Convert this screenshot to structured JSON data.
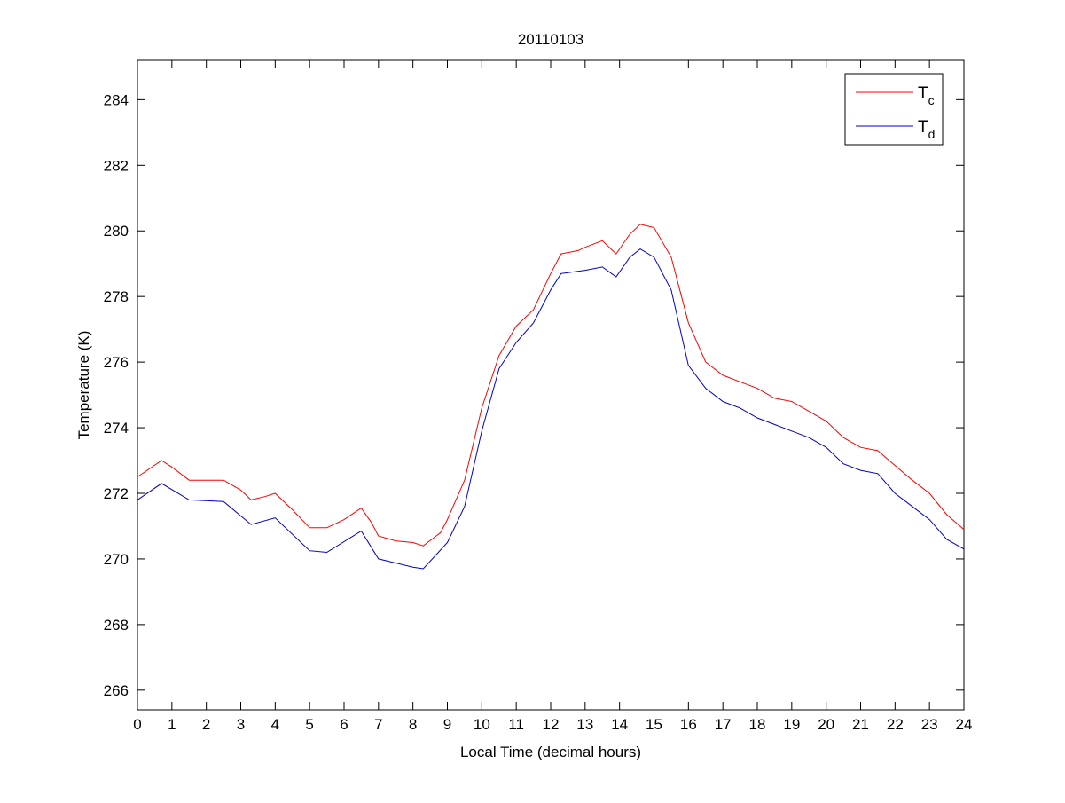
{
  "chart_data": {
    "type": "line",
    "title": "20110103",
    "xlabel": "Local Time (decimal hours)",
    "ylabel": "Temperature (K)",
    "xlim": [
      0,
      24
    ],
    "ylim": [
      265.4,
      285.2
    ],
    "xticks": [
      0,
      1,
      2,
      3,
      4,
      5,
      6,
      7,
      8,
      9,
      10,
      11,
      12,
      13,
      14,
      15,
      16,
      17,
      18,
      19,
      20,
      21,
      22,
      23,
      24
    ],
    "yticks": [
      266,
      268,
      270,
      272,
      274,
      276,
      278,
      280,
      282,
      284
    ],
    "grid": false,
    "legend_position": "top-right",
    "series": [
      {
        "name": "T",
        "subscript": "c",
        "color": "#ff0000",
        "x": [
          0,
          0.7,
          1,
          1.5,
          2,
          2.5,
          3,
          3.3,
          3.7,
          4,
          4.5,
          5,
          5.5,
          6,
          6.5,
          6.8,
          7,
          7.5,
          8,
          8.3,
          8.8,
          9,
          9.5,
          10,
          10.5,
          11,
          11.5,
          12,
          12.3,
          12.8,
          13,
          13.5,
          13.9,
          14.3,
          14.6,
          15,
          15.5,
          16,
          16.5,
          17,
          17.5,
          18,
          18.5,
          19,
          19.5,
          20,
          20.5,
          21,
          21.5,
          22,
          22.5,
          23,
          23.5,
          24
        ],
        "y": [
          272.5,
          273.0,
          272.8,
          272.4,
          272.4,
          272.4,
          272.1,
          271.8,
          271.9,
          272.0,
          271.5,
          270.95,
          270.95,
          271.2,
          271.55,
          271.1,
          270.7,
          270.55,
          270.5,
          270.4,
          270.8,
          271.2,
          272.4,
          274.6,
          276.2,
          277.1,
          277.6,
          278.7,
          279.3,
          279.4,
          279.5,
          279.7,
          279.3,
          279.9,
          280.2,
          280.1,
          279.2,
          277.2,
          276.0,
          275.6,
          275.4,
          275.2,
          274.9,
          274.8,
          274.5,
          274.2,
          273.7,
          273.4,
          273.3,
          272.85,
          272.4,
          272.0,
          271.35,
          270.9
        ]
      },
      {
        "name": "T",
        "subscript": "d",
        "color": "#0000cc",
        "x": [
          0,
          0.7,
          1.5,
          2.5,
          3.3,
          4,
          5,
          5.5,
          6.5,
          7,
          8,
          8.3,
          9,
          9.5,
          10,
          10.5,
          11,
          11.5,
          12,
          12.3,
          13,
          13.5,
          13.9,
          14.3,
          14.6,
          15,
          15.5,
          16,
          16.5,
          17,
          17.5,
          18,
          18.5,
          19,
          19.5,
          20,
          20.5,
          21,
          21.5,
          22,
          22.5,
          23,
          23.5,
          24
        ],
        "y": [
          271.8,
          272.3,
          271.8,
          271.75,
          271.05,
          271.25,
          270.25,
          270.2,
          270.85,
          270.0,
          269.75,
          269.7,
          270.5,
          271.6,
          273.9,
          275.8,
          276.6,
          277.2,
          278.2,
          278.7,
          278.8,
          278.9,
          278.6,
          279.2,
          279.45,
          279.2,
          278.2,
          275.9,
          275.2,
          274.8,
          274.6,
          274.3,
          274.1,
          273.9,
          273.7,
          273.4,
          272.9,
          272.7,
          272.6,
          272.0,
          271.6,
          271.2,
          270.6,
          270.3
        ]
      }
    ]
  }
}
